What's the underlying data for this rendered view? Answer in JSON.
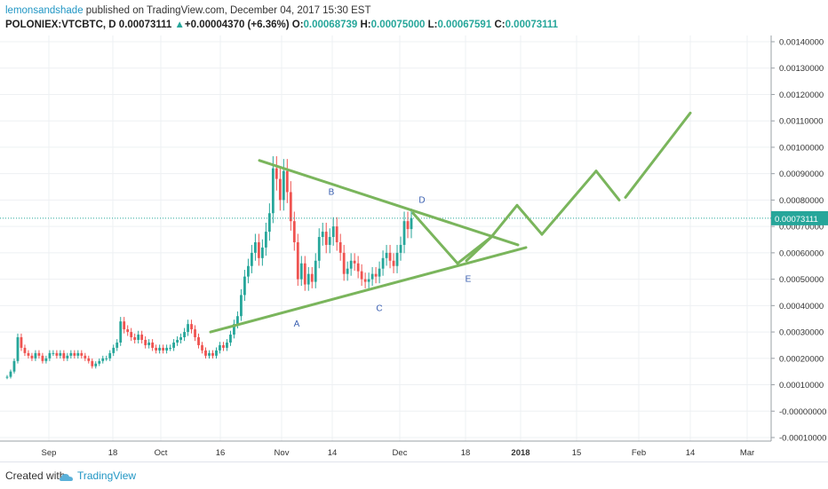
{
  "header": {
    "author": "lemonsandshade",
    "published": " published on TradingView.com, December 04, 2017 15:30 EST",
    "symbol": "POLONIEX:VTCBTC, D",
    "last": "0.00073111",
    "change_arrow": "▲",
    "change": "+0.00004370 (+6.36%)",
    "open_label": "O:",
    "open": "0.00068739",
    "high_label": "H:",
    "high": "0.00075000",
    "low_label": "L:",
    "low": "0.00067591",
    "close_label": "C:",
    "close": "0.00073111"
  },
  "footer": {
    "created_with": "Created with",
    "brand": "TradingView"
  },
  "chart_data": {
    "type": "candlestick",
    "yticks": [
      "0.00140000",
      "0.00130000",
      "0.00120000",
      "0.00110000",
      "0.00100000",
      "0.00090000",
      "0.00080000",
      "0.00070000",
      "0.00060000",
      "0.00050000",
      "0.00040000",
      "0.00030000",
      "0.00020000",
      "0.00010000",
      "-0.00000000",
      "-0.00010000"
    ],
    "ylim": [
      -0.0001,
      0.0014
    ],
    "xticks": [
      "Sep",
      "18",
      "Oct",
      "16",
      "Nov",
      "14",
      "Dec",
      "18",
      "2018",
      "15",
      "Feb",
      "14",
      "Mar"
    ],
    "price_label": "0.00073111",
    "up_color": "#26a69a",
    "down_color": "#ef5350",
    "pattern_color": "#7ab55c",
    "annotations": [
      "A",
      "B",
      "C",
      "D",
      "E"
    ],
    "close_prices": [
      0.00013,
      0.00015,
      0.00019,
      0.00028,
      0.00024,
      0.00022,
      0.00021,
      0.0002,
      0.00022,
      0.00021,
      0.00019,
      0.0002,
      0.00022,
      0.00022,
      0.00021,
      0.00022,
      0.0002,
      0.00021,
      0.00022,
      0.00021,
      0.00022,
      0.00021,
      0.0002,
      0.00019,
      0.00017,
      0.00018,
      0.00019,
      0.0002,
      0.0002,
      0.00022,
      0.00024,
      0.00026,
      0.00034,
      0.00031,
      0.0003,
      0.00028,
      0.00027,
      0.00029,
      0.00027,
      0.00025,
      0.00026,
      0.00024,
      0.00023,
      0.00024,
      0.00023,
      0.00024,
      0.00024,
      0.00026,
      0.00027,
      0.00028,
      0.0003,
      0.00033,
      0.00031,
      0.00028,
      0.00025,
      0.00023,
      0.00021,
      0.00022,
      0.00021,
      0.00023,
      0.00025,
      0.00024,
      0.00026,
      0.00029,
      0.00033,
      0.00036,
      0.00044,
      0.00051,
      0.00055,
      0.0006,
      0.00064,
      0.00058,
      0.00062,
      0.00068,
      0.00075,
      0.00092,
      0.00088,
      0.0008,
      0.00091,
      0.00083,
      0.00072,
      0.00064,
      0.0005,
      0.00056,
      0.00048,
      0.00052,
      0.00049,
      0.00057,
      0.00066,
      0.00068,
      0.00063,
      0.00066,
      0.0007,
      0.00064,
      0.0006,
      0.00052,
      0.00054,
      0.00057,
      0.00056,
      0.00053,
      0.0005,
      0.00049,
      0.0005,
      0.00052,
      0.00051,
      0.00054,
      0.00058,
      0.0006,
      0.00057,
      0.00055,
      0.0006,
      0.00063,
      0.00072,
      0.00069,
      0.00073111
    ]
  }
}
